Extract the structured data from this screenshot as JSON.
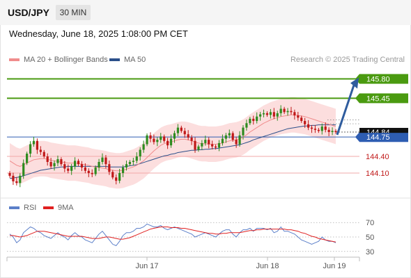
{
  "header": {
    "symbol": "USD/JPY",
    "timeframe": "30 MIN",
    "datetime": "Wednesday, June 18, 2025 1:08:00 PM CET"
  },
  "legend": {
    "ma20": {
      "label": "MA 20 + Bollinger Bands",
      "color": "#f08c8c"
    },
    "ma50": {
      "label": "MA 50",
      "color": "#2b4f8a"
    }
  },
  "credit": "Research © 2025 Trading Central",
  "rsi_legend": {
    "rsi": {
      "label": "RSI",
      "color": "#5b7fc9"
    },
    "ma": {
      "label": "9MA",
      "color": "#e02020"
    }
  },
  "colors": {
    "bullish": "#2e8b1f",
    "bearish": "#c01818",
    "band_fill": "#fbd8d8",
    "green_level": "#4a9a10",
    "red_level": "#f2a8a8",
    "blue_level": "#2e5db2",
    "arrow": "#2f5c9e"
  },
  "chart_data": [
    {
      "type": "candlestick",
      "title": "USD/JPY 30 MIN",
      "ylim": [
        143.66,
        146.02
      ],
      "x_ticks": [
        "Jun 17",
        "Jun 18",
        "Jun 19"
      ],
      "current_price": "144.84",
      "levels": [
        {
          "value": 145.8,
          "label": "145.80",
          "kind": "resistance",
          "style": "filled"
        },
        {
          "value": 145.45,
          "label": "145.45",
          "kind": "resistance",
          "style": "filled"
        },
        {
          "value": 144.75,
          "label": "144.75",
          "kind": "pivot",
          "style": "filled"
        },
        {
          "value": 144.4,
          "label": "144.40",
          "kind": "support",
          "style": "text"
        },
        {
          "value": 144.1,
          "label": "144.10",
          "kind": "support",
          "style": "text"
        }
      ],
      "projection": {
        "from": 144.79,
        "to": 145.8
      },
      "close_series": [
        144.05,
        143.95,
        143.92,
        144.05,
        144.28,
        144.45,
        144.62,
        144.68,
        144.52,
        144.48,
        144.4,
        144.3,
        144.22,
        144.28,
        144.35,
        144.26,
        144.18,
        144.14,
        144.22,
        144.32,
        144.26,
        144.2,
        144.14,
        144.1,
        144.08,
        144.2,
        144.3,
        144.38,
        144.26,
        144.12,
        144.02,
        143.96,
        144.1,
        144.2,
        144.26,
        144.3,
        144.32,
        144.4,
        144.52,
        144.62,
        144.78,
        144.72,
        144.66,
        144.7,
        144.76,
        144.68,
        144.6,
        144.72,
        144.82,
        144.92,
        144.86,
        144.8,
        144.74,
        144.68,
        144.52,
        144.58,
        144.64,
        144.7,
        144.62,
        144.58,
        144.56,
        144.64,
        144.72,
        144.78,
        144.82,
        144.7,
        144.62,
        144.78,
        144.92,
        145.0,
        145.08,
        145.04,
        145.12,
        145.16,
        145.18,
        145.15,
        145.2,
        145.12,
        145.18,
        145.26,
        145.2,
        145.22,
        145.2,
        145.14,
        145.1,
        145.04,
        144.98,
        144.92,
        144.9,
        144.88,
        144.86,
        144.94,
        144.88,
        144.84,
        144.86,
        144.84
      ],
      "ma20_series": [
        144.32,
        144.28,
        144.24,
        144.22,
        144.25,
        144.28,
        144.31,
        144.34,
        144.35,
        144.36,
        144.36,
        144.35,
        144.33,
        144.32,
        144.31,
        144.3,
        144.29,
        144.28,
        144.28,
        144.28,
        144.27,
        144.26,
        144.25,
        144.24,
        144.22,
        144.21,
        144.2,
        144.19,
        144.18,
        144.16,
        144.15,
        144.14,
        144.14,
        144.15,
        144.17,
        144.19,
        144.21,
        144.24,
        144.28,
        144.32,
        144.38,
        144.44,
        144.5,
        144.55,
        144.6,
        144.63,
        144.65,
        144.66,
        144.68,
        144.7,
        144.71,
        144.71,
        144.7,
        144.68,
        144.66,
        144.64,
        144.63,
        144.63,
        144.62,
        144.62,
        144.62,
        144.63,
        144.64,
        144.66,
        144.68,
        144.69,
        144.7,
        144.72,
        144.75,
        144.79,
        144.84,
        144.88,
        144.92,
        144.96,
        145.0,
        145.03,
        145.06,
        145.08,
        145.1,
        145.12,
        145.13,
        145.14,
        145.15,
        145.15,
        145.14,
        145.13,
        145.12,
        145.1,
        145.08,
        145.06,
        145.04,
        145.02,
        145.0,
        144.98,
        144.96,
        144.94
      ],
      "ma50_series": [
        144.0,
        144.01,
        144.02,
        144.03,
        144.05,
        144.07,
        144.09,
        144.11,
        144.13,
        144.15,
        144.16,
        144.17,
        144.18,
        144.19,
        144.2,
        144.21,
        144.21,
        144.22,
        144.22,
        144.22,
        144.22,
        144.22,
        144.22,
        144.22,
        144.22,
        144.22,
        144.22,
        144.22,
        144.22,
        144.21,
        144.21,
        144.21,
        144.21,
        144.21,
        144.22,
        144.23,
        144.24,
        144.25,
        144.27,
        144.29,
        144.31,
        144.33,
        144.35,
        144.37,
        144.39,
        144.41,
        144.42,
        144.44,
        144.45,
        144.47,
        144.48,
        144.49,
        144.5,
        144.51,
        144.51,
        144.52,
        144.52,
        144.53,
        144.53,
        144.54,
        144.54,
        144.55,
        144.56,
        144.57,
        144.58,
        144.59,
        144.6,
        144.61,
        144.63,
        144.65,
        144.67,
        144.7,
        144.72,
        144.74,
        144.76,
        144.78,
        144.8,
        144.82,
        144.84,
        144.86,
        144.88,
        144.9,
        144.91,
        144.92,
        144.93,
        144.94,
        144.95,
        144.95,
        144.96,
        144.96,
        144.97,
        144.97,
        144.97,
        144.97,
        144.97,
        144.97
      ],
      "band_width": 0.32
    },
    {
      "type": "line",
      "title": "RSI",
      "ylim": [
        24,
        76
      ],
      "y_ticks": [
        70,
        50,
        30
      ],
      "series": [
        {
          "name": "RSI",
          "values": [
            54,
            50,
            42,
            46,
            56,
            60,
            64,
            62,
            58,
            56,
            52,
            50,
            48,
            52,
            56,
            52,
            50,
            46,
            52,
            56,
            52,
            50,
            46,
            44,
            42,
            48,
            54,
            58,
            52,
            46,
            40,
            38,
            44,
            52,
            56,
            56,
            58,
            62,
            62,
            64,
            68,
            66,
            64,
            64,
            66,
            62,
            60,
            62,
            64,
            62,
            60,
            58,
            56,
            54,
            50,
            52,
            54,
            56,
            54,
            52,
            50,
            54,
            58,
            60,
            60,
            54,
            50,
            56,
            60,
            60,
            62,
            58,
            62,
            62,
            62,
            60,
            62,
            56,
            58,
            64,
            58,
            58,
            56,
            54,
            50,
            46,
            44,
            42,
            40,
            42,
            44,
            50,
            46,
            44,
            44,
            42
          ]
        },
        {
          "name": "9MA",
          "values": [
            52,
            52,
            51,
            50,
            51,
            52,
            54,
            56,
            58,
            58,
            58,
            57,
            56,
            55,
            54,
            53,
            52,
            51,
            51,
            51,
            51,
            51,
            50,
            49,
            48,
            48,
            48,
            49,
            50,
            50,
            49,
            48,
            47,
            47,
            48,
            49,
            51,
            53,
            55,
            57,
            59,
            61,
            62,
            63,
            64,
            64,
            64,
            63,
            63,
            63,
            62,
            62,
            61,
            60,
            59,
            58,
            57,
            56,
            55,
            55,
            54,
            54,
            55,
            55,
            56,
            56,
            56,
            56,
            57,
            58,
            59,
            59,
            60,
            60,
            61,
            61,
            61,
            61,
            61,
            61,
            61,
            60,
            60,
            59,
            58,
            56,
            55,
            53,
            51,
            50,
            48,
            47,
            46,
            45,
            44,
            43
          ]
        }
      ]
    }
  ]
}
